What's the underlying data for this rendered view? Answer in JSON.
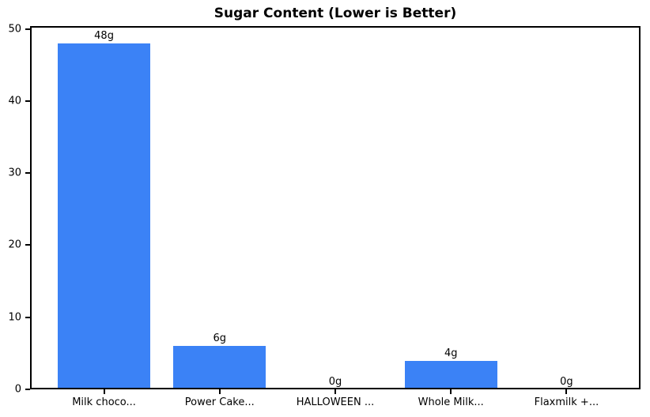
{
  "chart_data": {
    "type": "bar",
    "title": "Sugar Content (Lower is Better)",
    "categories": [
      "Milk choco...",
      "Power Cake...",
      "HALLOWEEN ...",
      "Whole Milk...",
      "Flaxmilk +..."
    ],
    "values": [
      48,
      6,
      0,
      4,
      0
    ],
    "bar_labels": [
      "48g",
      "6g",
      "0g",
      "4g",
      "0g"
    ],
    "xlabel": "",
    "ylabel": "",
    "ylim": [
      0,
      50.4
    ],
    "yticks": [
      0,
      10,
      20,
      30,
      40,
      50
    ],
    "xlim": [
      -0.64,
      4.64
    ],
    "bar_width": 0.8,
    "bar_color": "#3b82f6",
    "grid": false,
    "legend": null
  }
}
